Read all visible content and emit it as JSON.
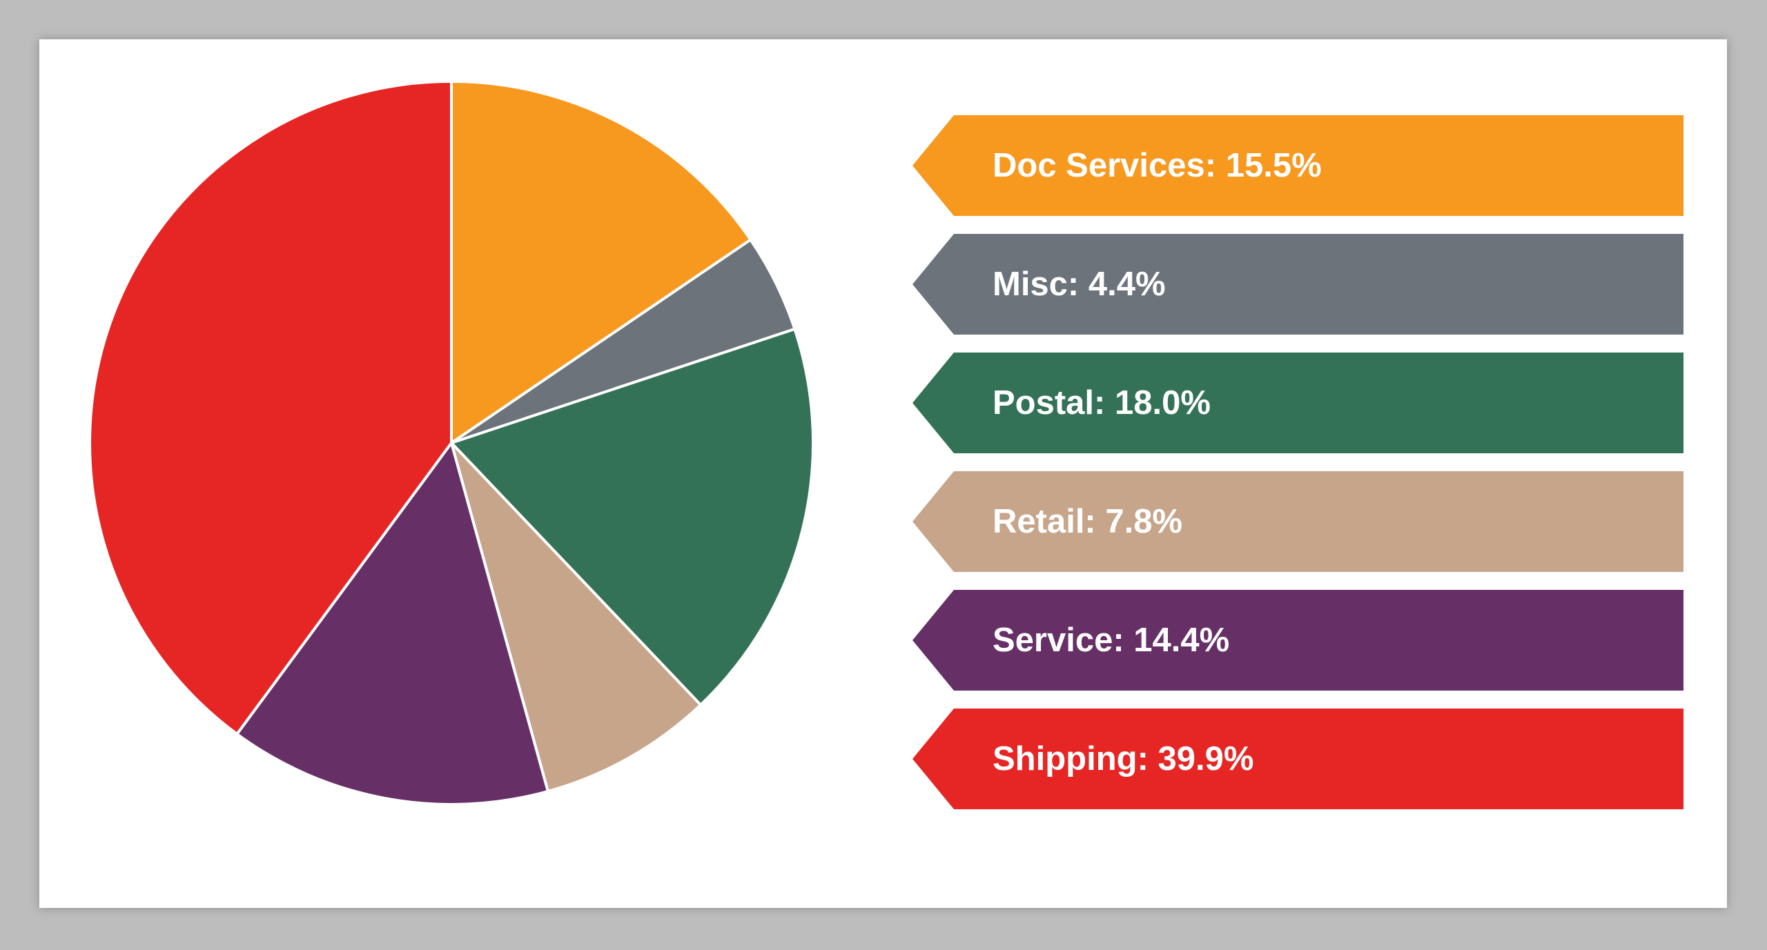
{
  "chart_data": {
    "type": "pie",
    "title": "",
    "slices": [
      {
        "label": "Doc Services: 15.5%",
        "value": 15.5,
        "color": "#f7981f"
      },
      {
        "label": "Misc: 4.4%",
        "value": 4.4,
        "color": "#6c737b"
      },
      {
        "label": "Postal: 18.0%",
        "value": 18.0,
        "color": "#347257"
      },
      {
        "label": "Retail: 7.8%",
        "value": 7.8,
        "color": "#c7a58b"
      },
      {
        "label": "Service: 14.4%",
        "value": 14.4,
        "color": "#663067"
      },
      {
        "label": "Shipping: 39.9%",
        "value": 39.9,
        "color": "#e62625"
      }
    ],
    "legend": {
      "placement": "right"
    }
  }
}
